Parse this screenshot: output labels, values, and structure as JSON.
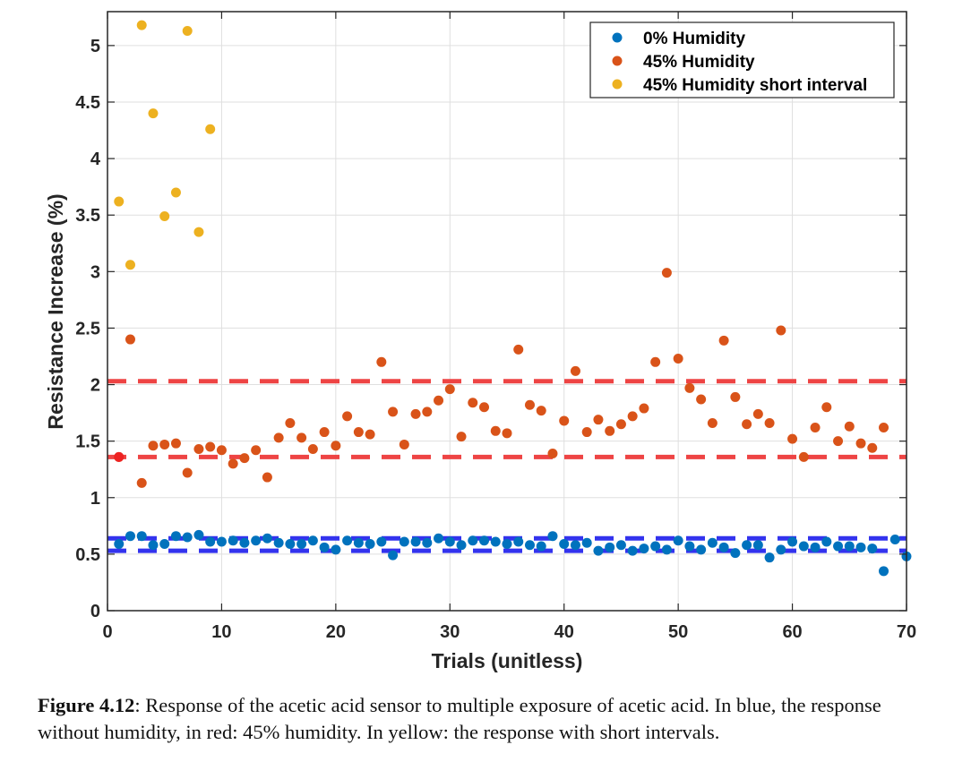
{
  "chart_data": {
    "type": "scatter",
    "xlabel": "Trials (unitless)",
    "ylabel": "Resistance Increase (%)",
    "xlim": [
      0,
      70
    ],
    "ylim": [
      0,
      5.3
    ],
    "xticks": [
      0,
      10,
      20,
      30,
      40,
      50,
      60,
      70
    ],
    "yticks": [
      0,
      0.5,
      1,
      1.5,
      2,
      2.5,
      3,
      3.5,
      4,
      4.5,
      5
    ],
    "xtick_labels": [
      "0",
      "10",
      "20",
      "30",
      "40",
      "50",
      "60",
      "70"
    ],
    "ytick_labels": [
      "0",
      "0.5",
      "1",
      "1.5",
      "2",
      "2.5",
      "3",
      "3.5",
      "4",
      "4.5",
      "5"
    ],
    "grid": true,
    "legend_position": "top-right",
    "series": [
      {
        "name": "0% Humidity",
        "color": "#0072BD",
        "x": [
          1,
          2,
          3,
          4,
          5,
          6,
          7,
          8,
          9,
          10,
          11,
          12,
          13,
          14,
          15,
          16,
          17,
          18,
          19,
          20,
          21,
          22,
          23,
          24,
          25,
          26,
          27,
          28,
          29,
          30,
          31,
          32,
          33,
          34,
          35,
          36,
          37,
          38,
          39,
          40,
          41,
          42,
          43,
          44,
          45,
          46,
          47,
          48,
          49,
          50,
          51,
          52,
          53,
          54,
          55,
          56,
          57,
          58,
          59,
          60,
          61,
          62,
          63,
          64,
          65,
          66,
          67,
          68,
          69,
          70
        ],
        "y": [
          0.59,
          0.66,
          0.66,
          0.58,
          0.59,
          0.66,
          0.65,
          0.67,
          0.61,
          0.61,
          0.62,
          0.6,
          0.62,
          0.64,
          0.6,
          0.59,
          0.59,
          0.62,
          0.56,
          0.54,
          0.62,
          0.6,
          0.59,
          0.61,
          0.49,
          0.61,
          0.61,
          0.6,
          0.64,
          0.61,
          0.58,
          0.62,
          0.62,
          0.61,
          0.59,
          0.61,
          0.58,
          0.57,
          0.66,
          0.59,
          0.58,
          0.6,
          0.53,
          0.56,
          0.58,
          0.53,
          0.55,
          0.57,
          0.54,
          0.62,
          0.57,
          0.54,
          0.6,
          0.56,
          0.51,
          0.58,
          0.58,
          0.47,
          0.54,
          0.61,
          0.57,
          0.56,
          0.61,
          0.57,
          0.57,
          0.56,
          0.55,
          0.35,
          0.63,
          0.48
        ]
      },
      {
        "name": "45% Humidity",
        "color": "#D95319",
        "x": [
          1,
          2,
          3,
          4,
          5,
          6,
          7,
          8,
          9,
          10,
          11,
          12,
          13,
          14,
          15,
          16,
          17,
          18,
          19,
          20,
          21,
          22,
          23,
          24,
          25,
          26,
          27,
          28,
          29,
          30,
          31,
          32,
          33,
          34,
          35,
          36,
          37,
          38,
          39,
          40,
          41,
          42,
          43,
          44,
          45,
          46,
          47,
          48,
          49,
          50,
          51,
          52,
          53,
          54,
          55,
          56,
          57,
          58,
          59,
          60,
          61,
          62,
          63,
          64,
          65,
          66,
          67,
          68
        ],
        "y": [
          1.36,
          2.4,
          1.13,
          1.46,
          1.47,
          1.48,
          1.22,
          1.43,
          1.45,
          1.42,
          1.3,
          1.35,
          1.42,
          1.18,
          1.53,
          1.66,
          1.53,
          1.43,
          1.58,
          1.46,
          1.72,
          1.58,
          1.56,
          2.2,
          1.76,
          1.47,
          1.74,
          1.76,
          1.86,
          1.96,
          1.54,
          1.84,
          1.8,
          1.59,
          1.57,
          2.31,
          1.82,
          1.77,
          1.39,
          1.68,
          2.12,
          1.58,
          1.69,
          1.59,
          1.65,
          1.72,
          1.79,
          2.2,
          2.99,
          2.23,
          1.97,
          1.87,
          1.66,
          2.39,
          1.89,
          1.65,
          1.74,
          1.66,
          2.48,
          1.52,
          1.36,
          1.62,
          1.8,
          1.5,
          1.63,
          1.48,
          1.44,
          1.62
        ]
      },
      {
        "name": "45% Humidity short interval",
        "color": "#EDB120",
        "x": [
          1,
          2,
          3,
          4,
          5,
          6,
          7,
          8,
          9
        ],
        "y": [
          3.62,
          3.06,
          5.18,
          4.4,
          3.49,
          3.7,
          5.13,
          3.35,
          4.26
        ]
      }
    ],
    "reference_lines": [
      {
        "y": 2.03,
        "color": "#EE4444",
        "style": "dashed"
      },
      {
        "y": 1.36,
        "color": "#EE4444",
        "style": "dashed"
      },
      {
        "y": 0.64,
        "color": "#3333EE",
        "style": "dashed"
      },
      {
        "y": 0.53,
        "color": "#3333EE",
        "style": "dashed"
      }
    ],
    "highlighted_point": {
      "x": 1,
      "y": 1.36,
      "color": "#EE2222"
    }
  },
  "caption": {
    "label": "Figure 4.12",
    "text": ": Response of the acetic acid sensor to multiple exposure of acetic acid. In blue, the response without humidity, in red: 45% humidity. In yellow: the response with short intervals."
  }
}
